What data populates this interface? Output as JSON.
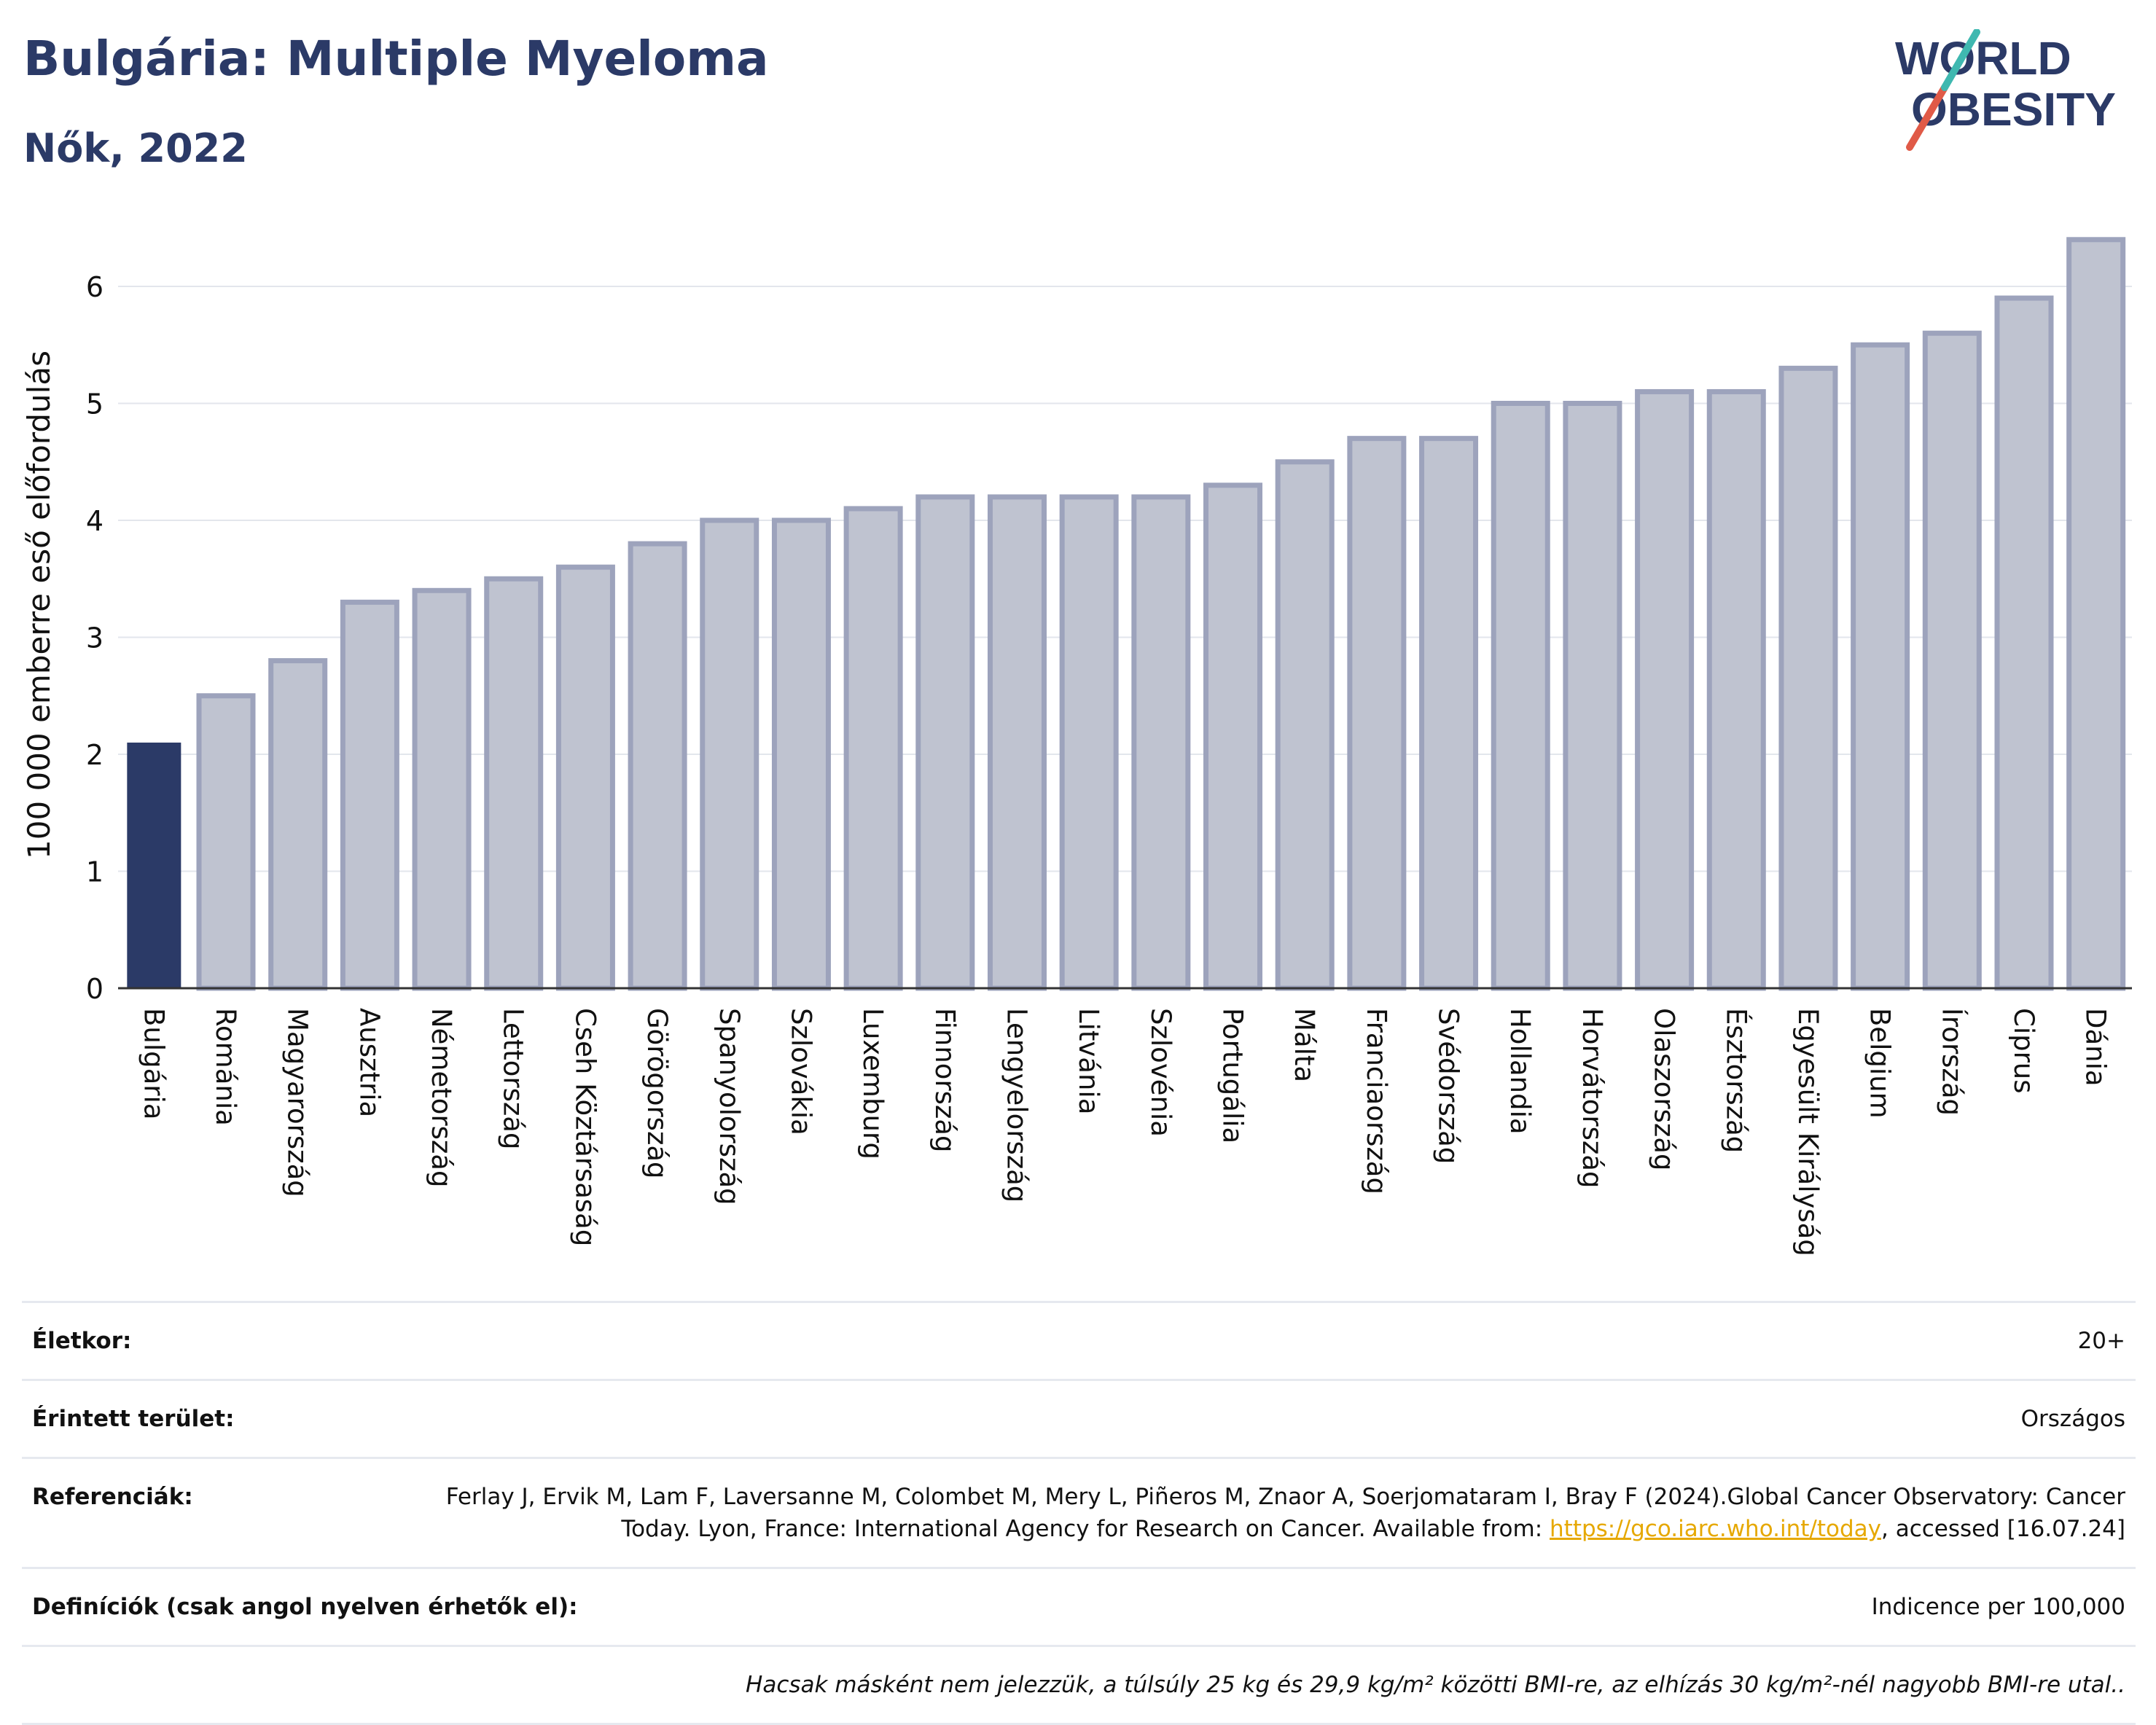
{
  "header": {
    "title": "Bulgária: Multiple Myeloma",
    "subtitle": "Nők, 2022"
  },
  "logo": {
    "line1": "WORLD",
    "line2": "OBESITY",
    "text_color": "#2b3a67",
    "slash_colors": [
      "#e05a47",
      "#3fb8b0"
    ]
  },
  "chart_data": {
    "type": "bar",
    "ylabel": "100 000 emberre eső előfordulás",
    "ylim": [
      0,
      6.5
    ],
    "yticks": [
      0,
      1,
      2,
      3,
      4,
      5,
      6
    ],
    "grid": true,
    "highlight_color": "#2b3a67",
    "bar_color": "#bfc3d0",
    "bar_edge_color": "#9da3bc",
    "highlight_index": 0,
    "categories": [
      "Bulgária",
      "Románia",
      "Magyarország",
      "Ausztria",
      "Németország",
      "Lettország",
      "Cseh Köztársaság",
      "Görögország",
      "Spanyolország",
      "Szlovákia",
      "Luxemburg",
      "Finnország",
      "Lengyelország",
      "Litvánia",
      "Szlovénia",
      "Portugália",
      "Málta",
      "Franciaország",
      "Svédország",
      "Hollandia",
      "Horvátország",
      "Olaszország",
      "Észtország",
      "Egyesült Királyság",
      "Belgium",
      "Írország",
      "Ciprus",
      "Dánia"
    ],
    "values": [
      2.1,
      2.5,
      2.8,
      3.3,
      3.4,
      3.5,
      3.6,
      3.8,
      4.0,
      4.0,
      4.1,
      4.2,
      4.2,
      4.2,
      4.2,
      4.3,
      4.5,
      4.7,
      4.7,
      5.0,
      5.0,
      5.1,
      5.1,
      5.3,
      5.5,
      5.6,
      5.9,
      6.4
    ]
  },
  "info": {
    "age_label": "Életkor:",
    "age_value": "20+",
    "area_label": "Érintett terület:",
    "area_value": "Országos",
    "refs_label": "Referenciák:",
    "refs_text_1": "Ferlay J, Ervik M, Lam F, Laversanne M, Colombet M, Mery L, Piñeros M, Znaor A, Soerjomataram I, Bray F (2024).Global Cancer Observatory: Cancer Today. Lyon, France: International Agency for Research on Cancer. Available from: ",
    "refs_link": "https://gco.iarc.who.int/today",
    "refs_text_2": ", accessed [16.07.24]",
    "defs_label": "Definíciók (csak angol nyelven érhetők el):",
    "defs_value": "Indicence per 100,000",
    "note": "Hacsak másként nem jelezzük, a túlsúly 25 kg és 29,9 kg/m² közötti BMI-re, az elhízás 30 kg/m²-nél nagyobb BMI-re utal.."
  }
}
